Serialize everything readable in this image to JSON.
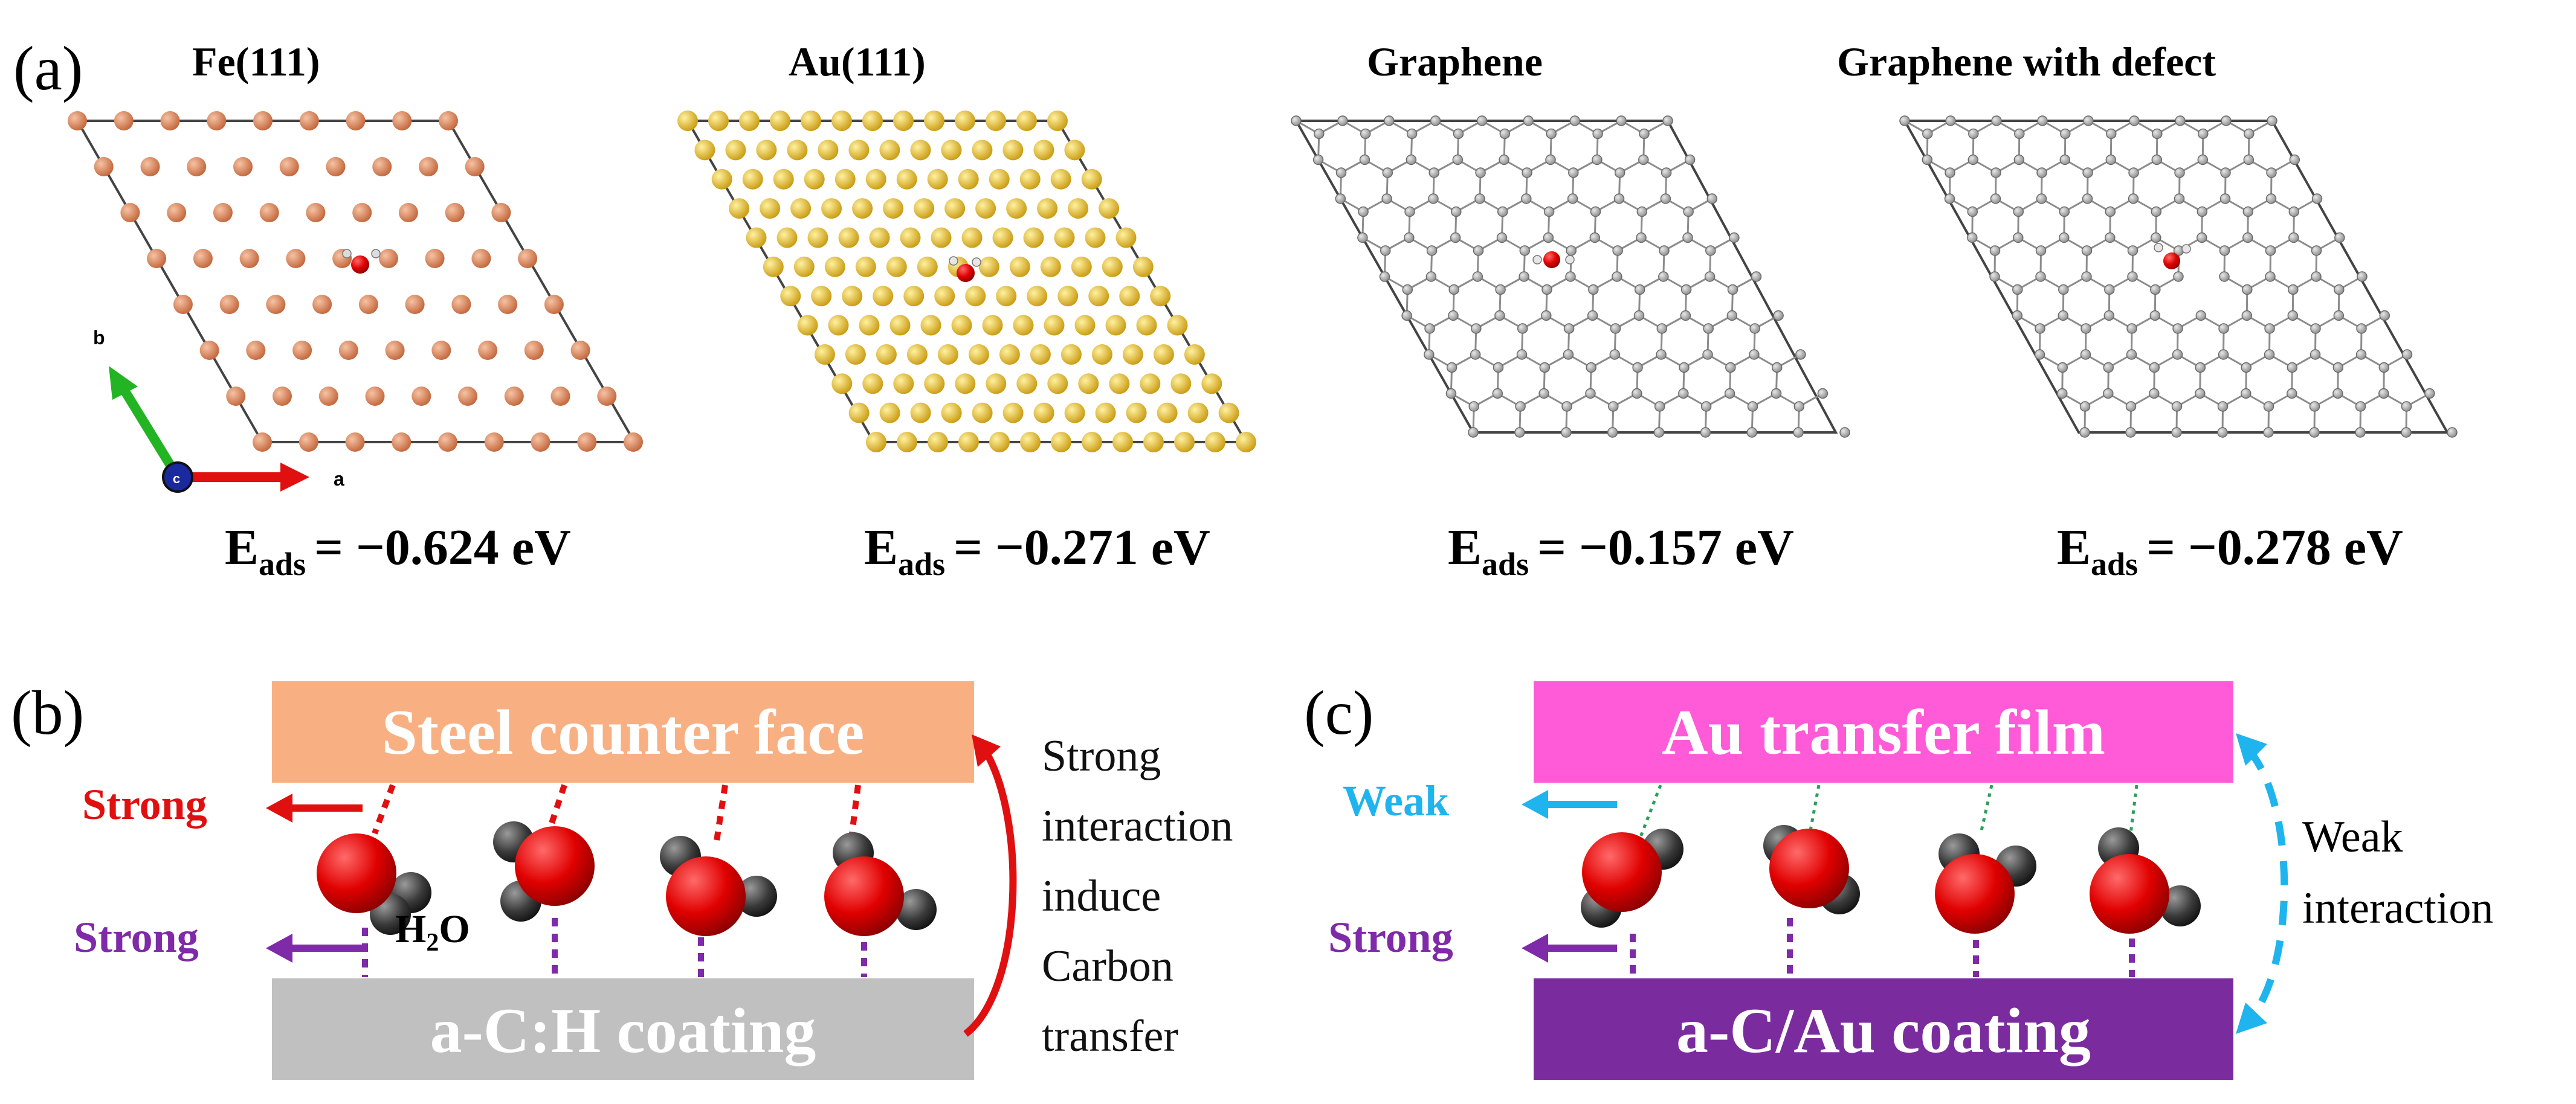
{
  "colors": {
    "fe_atom": "#d9825a",
    "au_atom": "#e8b928",
    "carbon_atom": "#a0a0a0",
    "bond": "#8c8c8c",
    "oxygen": "#dd1111",
    "hydrogen": "#3a3a3a",
    "steel_box": "#f8b083",
    "coating_gray": "#c0c0c0",
    "au_film": "#ff5ad7",
    "au_coating": "#7a2c9e",
    "strong_red": "#e01010",
    "strong_purple": "#7f2aa8",
    "weak_blue": "#1fb4ee",
    "weak_green": "#2ca05a"
  },
  "panel_a": {
    "label": "(a)",
    "panels": [
      {
        "title": "Fe(111)",
        "e_symbol": "E",
        "e_sub": "ads",
        "e_value": "= −0.624 eV"
      },
      {
        "title": "Au(111)",
        "e_symbol": "E",
        "e_sub": "ads",
        "e_value": "= −0.271 eV"
      },
      {
        "title": "Graphene",
        "e_symbol": "E",
        "e_sub": "ads",
        "e_value": "= −0.157 eV"
      },
      {
        "title": "Graphene with defect",
        "e_symbol": "E",
        "e_sub": "ads",
        "e_value": "= −0.278 eV"
      }
    ],
    "axes": {
      "a_label": "a",
      "b_label": "b",
      "c_label": "c"
    }
  },
  "panel_b": {
    "label": "(b)",
    "top_box": "Steel counter face",
    "bottom_box": "a-C:H coating",
    "strong_top": "Strong",
    "strong_bottom": "Strong",
    "molecule_label": "H",
    "molecule_sub": "2",
    "molecule_tail": "O",
    "side_text": [
      "Strong",
      "interaction",
      "induce",
      "Carbon",
      "transfer"
    ]
  },
  "panel_c": {
    "label": "(c)",
    "top_box": "Au transfer film",
    "bottom_box": "a-C/Au coating",
    "weak_top": "Weak",
    "strong_bottom": "Strong",
    "side_text": [
      "Weak",
      "interaction"
    ]
  }
}
